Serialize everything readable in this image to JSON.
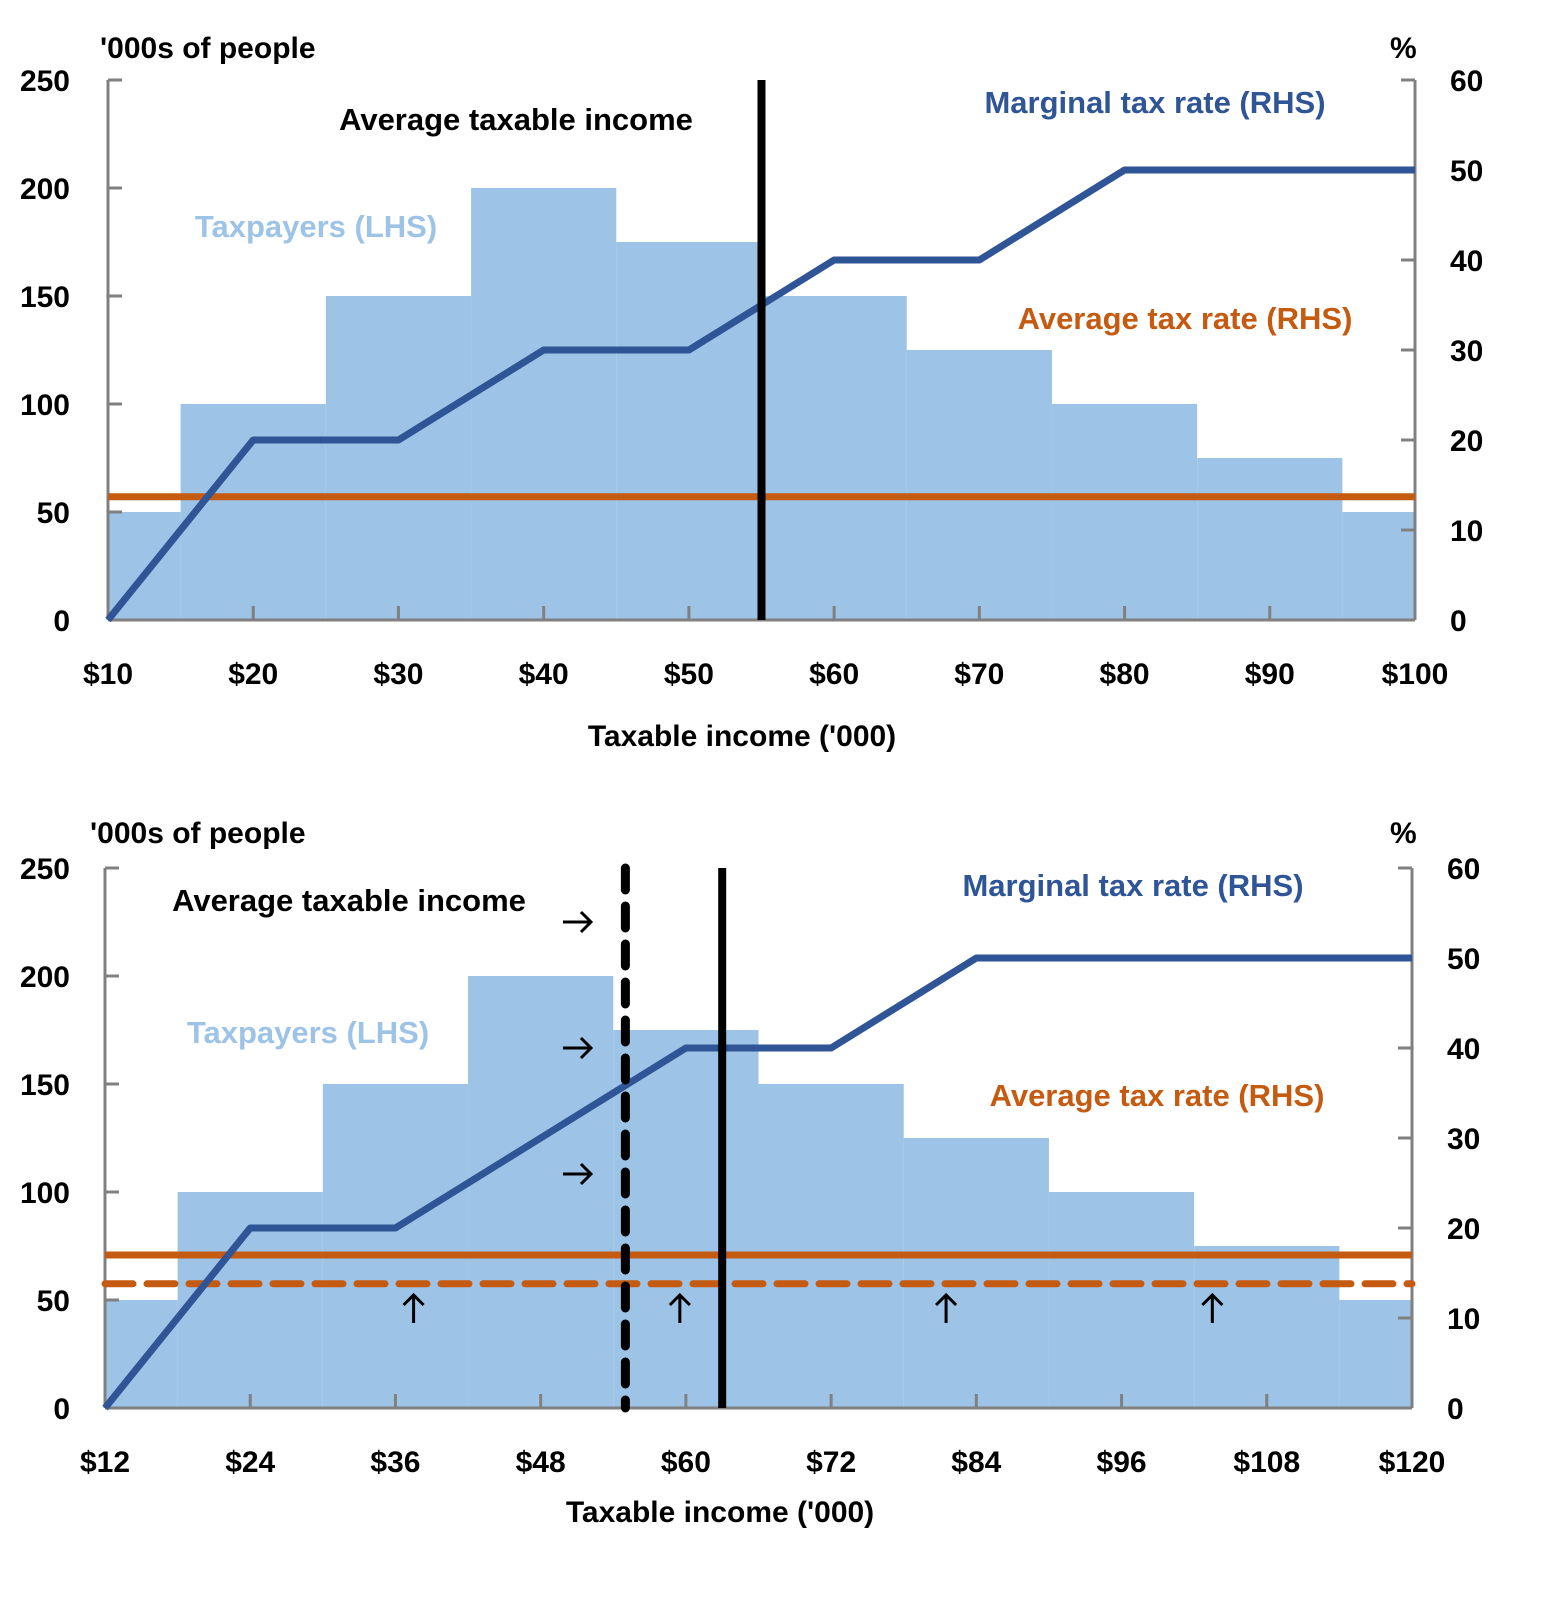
{
  "colors": {
    "bars": "#9DC3E6",
    "marginal": "#2F5597",
    "average": "#C55A11",
    "axis": "#808080",
    "income_line": "#000000"
  },
  "chart_data": [
    {
      "type": "bar+line",
      "ylabel_left": "'000s of people",
      "ylabel_right": "%",
      "xlabel": "Taxable income ('000)",
      "xlim": [
        10,
        100
      ],
      "ylim_left": [
        0,
        250
      ],
      "ylim_right": [
        0,
        60
      ],
      "x_ticks": [
        10,
        20,
        30,
        40,
        50,
        60,
        70,
        80,
        90,
        100
      ],
      "x_tick_labels": [
        "$10",
        "$20",
        "$30",
        "$40",
        "$50",
        "$60",
        "$70",
        "$80",
        "$90",
        "$100"
      ],
      "y_left_ticks": [
        "0",
        "50",
        "100",
        "150",
        "200",
        "250"
      ],
      "y_right_ticks": [
        "0",
        "10",
        "20",
        "30",
        "40",
        "50",
        "60"
      ],
      "bars": {
        "name": "Taxpayers (LHS)",
        "bins": [
          [
            10,
            15,
            50
          ],
          [
            15,
            25,
            100
          ],
          [
            25,
            35,
            150
          ],
          [
            35,
            45,
            200
          ],
          [
            45,
            55,
            175
          ],
          [
            55,
            65,
            150
          ],
          [
            65,
            75,
            125
          ],
          [
            75,
            85,
            100
          ],
          [
            85,
            95,
            75
          ],
          [
            95,
            100,
            50
          ]
        ]
      },
      "marginal": {
        "name": "Marginal tax rate (RHS)",
        "points": [
          [
            10,
            0
          ],
          [
            20,
            20
          ],
          [
            30,
            20
          ],
          [
            40,
            30
          ],
          [
            50,
            30
          ],
          [
            60,
            40
          ],
          [
            70,
            40
          ],
          [
            80,
            50
          ],
          [
            100,
            50
          ]
        ]
      },
      "average_rates": [
        {
          "value": 13.7,
          "style": "solid"
        }
      ],
      "income_lines": [
        {
          "x": 55,
          "style": "solid"
        }
      ],
      "income_label": "Average taxable income",
      "average_label": "Average tax rate (RHS)",
      "arrows_right": [],
      "arrows_up": []
    },
    {
      "type": "bar+line",
      "ylabel_left": "'000s of people",
      "ylabel_right": "%",
      "xlabel": "Taxable income ('000)",
      "xlim": [
        12,
        120
      ],
      "ylim_left": [
        0,
        250
      ],
      "ylim_right": [
        0,
        60
      ],
      "x_ticks": [
        12,
        24,
        36,
        48,
        60,
        72,
        84,
        96,
        108,
        120
      ],
      "x_tick_labels": [
        "$12",
        "$24",
        "$36",
        "$48",
        "$60",
        "$72",
        "$84",
        "$96",
        "$108",
        "$120"
      ],
      "y_left_ticks": [
        "0",
        "50",
        "100",
        "150",
        "200",
        "250"
      ],
      "y_right_ticks": [
        "0",
        "10",
        "20",
        "30",
        "40",
        "50",
        "60"
      ],
      "bars": {
        "name": "Taxpayers (LHS)",
        "bins": [
          [
            12,
            18,
            50
          ],
          [
            18,
            30,
            100
          ],
          [
            30,
            42,
            150
          ],
          [
            42,
            54,
            200
          ],
          [
            54,
            66,
            175
          ],
          [
            66,
            78,
            150
          ],
          [
            78,
            90,
            125
          ],
          [
            90,
            102,
            100
          ],
          [
            102,
            114,
            75
          ],
          [
            114,
            120,
            50
          ]
        ]
      },
      "marginal": {
        "name": "Marginal tax rate (RHS)",
        "points": [
          [
            12,
            0
          ],
          [
            24,
            20
          ],
          [
            36,
            20
          ],
          [
            60,
            40
          ],
          [
            72,
            40
          ],
          [
            84,
            50
          ],
          [
            120,
            50
          ]
        ]
      },
      "average_rates": [
        {
          "value": 17,
          "style": "solid"
        },
        {
          "value": 13.8,
          "style": "dashed"
        }
      ],
      "income_lines": [
        {
          "x": 55,
          "style": "dashed"
        },
        {
          "x": 63,
          "style": "solid"
        }
      ],
      "income_label": "Average taxable income",
      "average_label": "Average tax rate (RHS)",
      "arrows_right": [
        [
          51,
          54
        ],
        [
          51,
          40
        ],
        [
          51,
          26
        ]
      ],
      "arrows_up": [
        [
          37.5,
          11
        ],
        [
          59.5,
          11
        ],
        [
          81.5,
          11
        ],
        [
          103.5,
          11
        ]
      ]
    }
  ]
}
